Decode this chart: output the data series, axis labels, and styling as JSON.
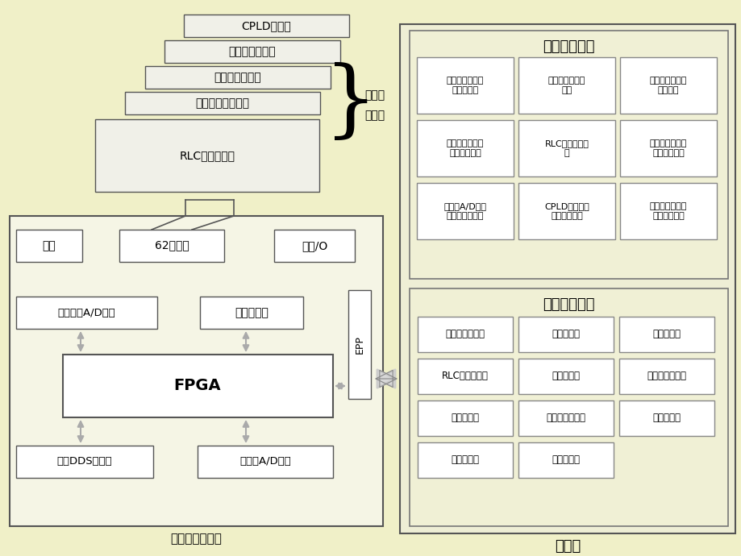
{
  "bg_color": "#f0f0c8",
  "stacked_labels": [
    "CPLD实验板",
    "电路自装实验板",
    "温度检测实验板",
    "滤波器电路实验板",
    "RLC电路实验板"
  ],
  "series_label_1": "系列化",
  "series_label_2": "实验板",
  "experiment_title": "电子测量实验",
  "experiment_cells": [
    [
      "数字存储示波器\n原理和应用",
      "交流电压表原理\n实验",
      "逻辑分析仪的原\n理及应用"
    ],
    [
      "电子频率计测频\n和调制的原理",
      "RLC元件参数测\n量",
      "温度检测与控制\n系统设计实验"
    ],
    [
      "双积分A/D原理\n和直流电压测量",
      "CPLD逻辑电路\n的设计与调试",
      "任意波形发生器\n的设计与调试"
    ]
  ],
  "warehouse_title": "虚拟仪器仓库",
  "warehouse_cells": [
    [
      "数字存储示波器",
      "直流电压表",
      "交流电压表"
    ],
    [
      "RLC参数测试仪",
      "函数发生器",
      "任意波形信号源"
    ],
    [
      "电子计数器",
      "频率特性测试仪",
      "逻辑分析仪"
    ],
    [
      "频谱分析仪",
      "扫频信号源",
      ""
    ]
  ],
  "computer_label": "计算机",
  "left_bottom_label": "电子测量实验箱",
  "fpga_label": "FPGA",
  "epp_label": "EPP",
  "dianYuan": "电源",
  "chip62": "62芯插座",
  "expand": "扩展/O",
  "adcollect": "两路高速A/D采集",
  "counter": "电子计数器",
  "dds": "两路DDS信号源",
  "dual_adc": "双积分A/D转换"
}
